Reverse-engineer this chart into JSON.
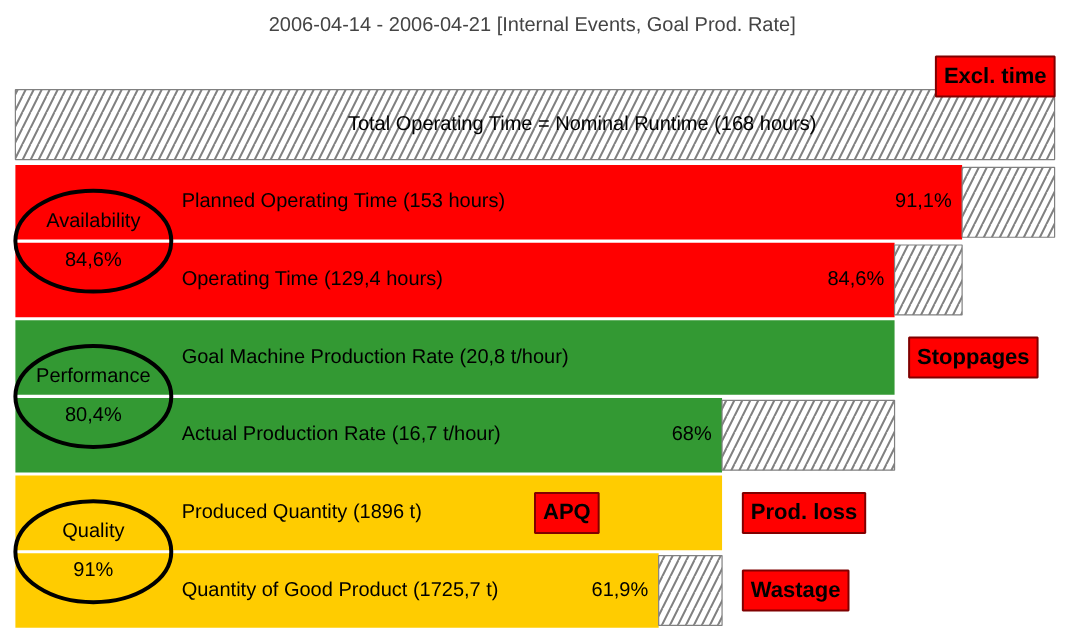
{
  "chart_data": {
    "type": "bar",
    "orientation": "horizontal",
    "stacked": true,
    "title": "2006-04-14 - 2006-04-21  [Internal Events, Goal Prod. Rate]",
    "categories": [
      "Total Operating Time = Nominal Runtime (168 hours)",
      "Planned Operating Time (153 hours)",
      "Operating Time (129,4 hours)",
      "Goal Machine Production Rate (20,8 t/hour)",
      "Actual Production Rate (16,7 t/hour)",
      "Produced Quantity (1896 t)",
      "Quantity of Good Product (1725,7 t)"
    ],
    "series": [
      {
        "colors": [
          "#ff0000",
          "#ff0000",
          "#ff0000",
          "#339933",
          "#339933",
          "#ffcc00",
          "#ffcc00"
        ],
        "values": [
          null,
          91.1,
          84.6,
          84.6,
          68,
          68,
          61.9
        ],
        "value_labels": [
          null,
          "91,1%",
          "84,6%",
          null,
          "68%",
          null,
          "61,9%"
        ]
      },
      {
        "color": "#808080",
        "values": [
          100,
          8.9,
          6.5,
          null,
          16.6,
          null,
          6.1
        ]
      }
    ],
    "annotations": [
      "Availability\n84,6%",
      "Performance\n80,4%",
      "Quality\n91%",
      "Excl. time",
      "Stoppages",
      "Prod. loss",
      "APQ",
      "Wastage"
    ]
  }
}
